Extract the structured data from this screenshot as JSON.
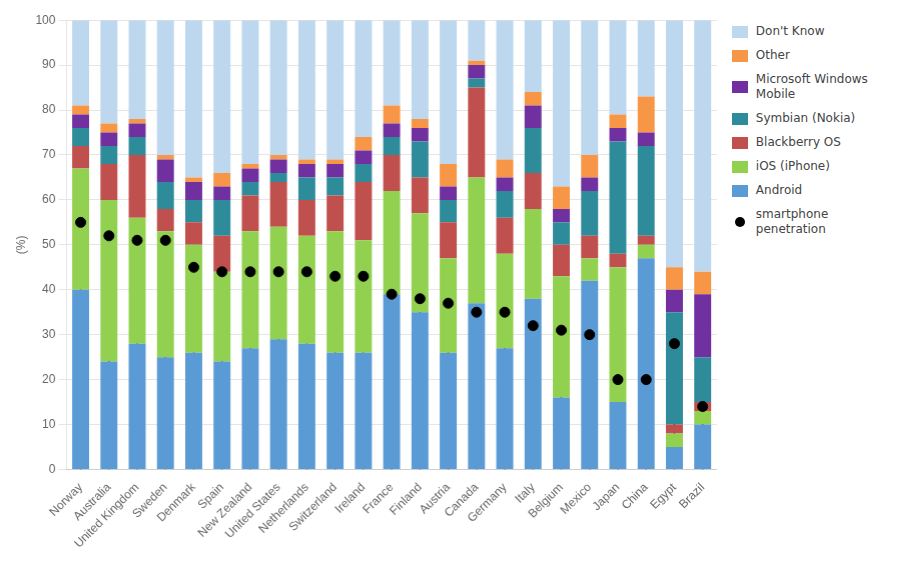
{
  "chart_data": {
    "type": "bar",
    "stacked": true,
    "ylabel": "(%)",
    "categories": [
      "Norway",
      "Australia",
      "United Kingdom",
      "Sweden",
      "Denmark",
      "Spain",
      "New Zealand",
      "United States",
      "Netherlands",
      "Switzerland",
      "Ireland",
      "France",
      "Finland",
      "Austria",
      "Canada",
      "Germany",
      "Italy",
      "Belgium",
      "Mexico",
      "Japan",
      "China",
      "Egypt",
      "Brazil"
    ],
    "series": [
      {
        "name": "Android",
        "color": "#5B9BD5",
        "values": [
          40,
          24,
          28,
          25,
          26,
          24,
          27,
          29,
          28,
          26,
          26,
          39,
          35,
          26,
          37,
          27,
          38,
          16,
          42,
          15,
          47,
          5,
          10
        ]
      },
      {
        "name": "iOS (iPhone)",
        "color": "#92D14F",
        "values": [
          27,
          36,
          28,
          28,
          24,
          20,
          26,
          25,
          24,
          27,
          25,
          23,
          22,
          21,
          28,
          21,
          20,
          27,
          5,
          30,
          3,
          3,
          3
        ]
      },
      {
        "name": "Blackberry OS",
        "color": "#C0504D",
        "values": [
          5,
          8,
          14,
          5,
          5,
          8,
          8,
          10,
          8,
          8,
          13,
          8,
          8,
          8,
          20,
          8,
          8,
          7,
          5,
          3,
          2,
          2,
          2
        ]
      },
      {
        "name": "Symbian (Nokia)",
        "color": "#2E8B9A",
        "values": [
          4,
          4,
          4,
          6,
          5,
          8,
          3,
          2,
          5,
          4,
          4,
          4,
          8,
          5,
          2,
          6,
          10,
          5,
          10,
          25,
          20,
          25,
          10
        ]
      },
      {
        "name": "Microsoft Windows\nMobile",
        "color": "#7030A0",
        "values": [
          3,
          3,
          3,
          5,
          4,
          3,
          3,
          3,
          3,
          3,
          3,
          3,
          3,
          3,
          3,
          3,
          5,
          3,
          3,
          3,
          3,
          5,
          14
        ]
      },
      {
        "name": "Other",
        "color": "#F79646",
        "values": [
          2,
          2,
          1,
          1,
          1,
          3,
          1,
          1,
          1,
          1,
          3,
          4,
          2,
          5,
          1,
          4,
          3,
          5,
          5,
          3,
          8,
          5,
          5
        ]
      },
      {
        "name": "Don't Know",
        "color": "#BDD7EE",
        "values": [
          19,
          23,
          22,
          30,
          35,
          34,
          32,
          30,
          31,
          31,
          26,
          19,
          22,
          32,
          9,
          31,
          16,
          37,
          30,
          21,
          17,
          55,
          56
        ]
      },
      {
        "name": "smartphone\npenetration",
        "type": "lollipop",
        "marker": "circle",
        "color": "#000000",
        "values": [
          55,
          52,
          51,
          51,
          45,
          44,
          44,
          44,
          44,
          43,
          43,
          39,
          38,
          37,
          35,
          35,
          32,
          31,
          30,
          20,
          20,
          28,
          14
        ]
      }
    ],
    "ylim": [
      0,
      100
    ],
    "yticks": [
      0,
      10,
      20,
      30,
      40,
      50,
      60,
      70,
      80,
      90,
      100
    ],
    "grid": true,
    "legend": "right"
  }
}
